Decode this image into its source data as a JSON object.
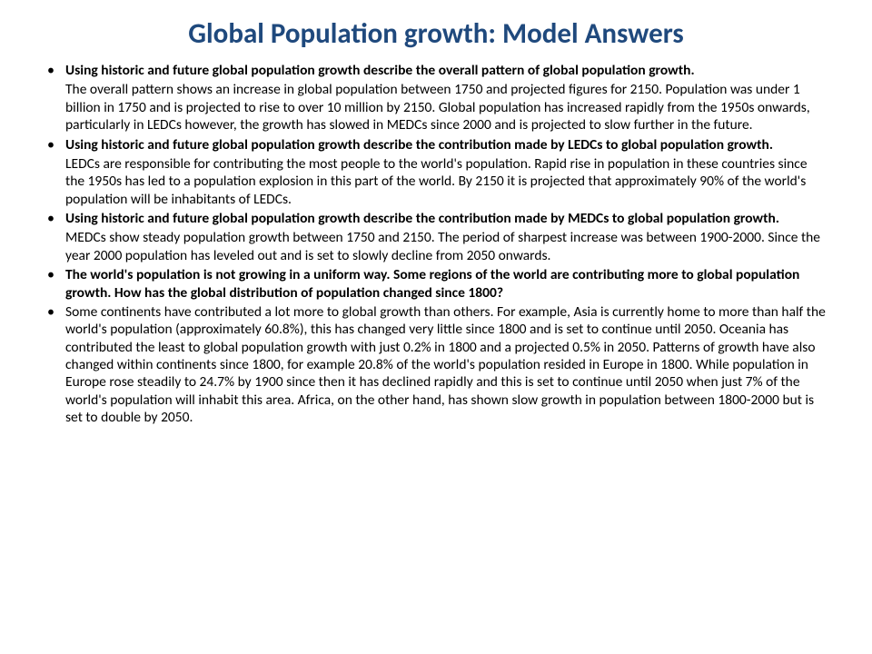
{
  "title": "Global Population growth: Model Answers",
  "title_color": "#1f497d",
  "title_fontsize": 31,
  "body_fontsize": 15.5,
  "body_color": "#000000",
  "background_color": "#ffffff",
  "items": [
    {
      "type": "question",
      "text": "Using historic and future global population growth describe the overall pattern of global population growth."
    },
    {
      "type": "answer",
      "text": "The overall pattern shows an increase in global population between 1750 and projected figures for 2150. Population was under 1 billion in 1750 and is projected to rise to over 10 million by 2150. Global population has increased rapidly from the 1950s onwards, particularly in LEDCs however, the growth has slowed in MEDCs since 2000 and is projected to slow further in the future."
    },
    {
      "type": "question",
      "text": "Using historic and future global population growth describe the contribution made by LEDCs to global population growth."
    },
    {
      "type": "answer",
      "text": "LEDCs are responsible for contributing the most people to the world's population. Rapid rise in population in these countries since the 1950s has led to a population explosion in this part of the world. By 2150 it is projected that approximately 90% of the world's population will be inhabitants of LEDCs."
    },
    {
      "type": "question",
      "text": "Using historic and future global population growth describe the contribution made by MEDCs to global population growth."
    },
    {
      "type": "answer",
      "text": "MEDCs show steady population growth between 1750 and 2150. The period of sharpest increase was between 1900-2000. Since the year 2000 population has leveled out and is set to slowly decline from 2050 onwards."
    },
    {
      "type": "question",
      "text": "The world's population is not growing in a uniform way. Some regions of the world are contributing more to global population growth. How has the global distribution of population changed since 1800?"
    },
    {
      "type": "bulleted_answer",
      "text": "Some continents have contributed a lot more to global growth than others. For example, Asia is currently home to more than half the world's population (approximately 60.8%), this has changed very little since 1800 and is set to continue until 2050. Oceania has contributed the least to global population growth with just 0.2% in 1800 and a projected 0.5% in 2050. Patterns of growth have also changed within continents since 1800, for example 20.8% of the world's population resided in Europe in 1800. While population in Europe rose steadily to 24.7% by 1900 since then it has declined rapidly and this is set to continue until 2050 when just 7% of the world's population will inhabit this area. Africa, on the other hand, has shown slow growth in population between 1800-2000 but is set to double by 2050."
    }
  ]
}
